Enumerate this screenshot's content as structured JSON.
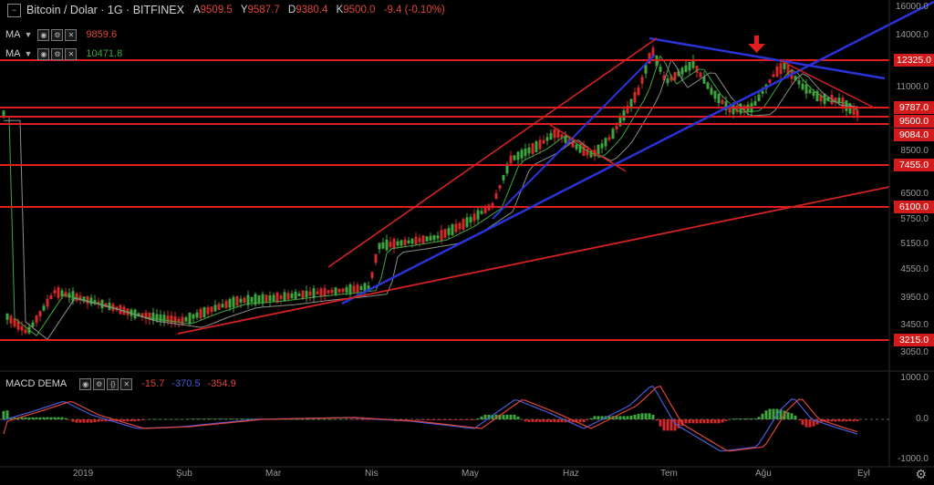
{
  "header": {
    "title": "Bitcoin / Dolar · 1G · BITFINEX",
    "ohlc": [
      {
        "k": "A",
        "v": "9509.5"
      },
      {
        "k": "Y",
        "v": "9587.7"
      },
      {
        "k": "D",
        "v": "9380.4"
      },
      {
        "k": "K",
        "v": "9500.0"
      }
    ],
    "change": "-9.4 (-0.10%)"
  },
  "indicators": [
    {
      "label": "MA",
      "value": "9859.6"
    },
    {
      "label": "MA",
      "value": "10471.8"
    }
  ],
  "macd": {
    "label": "MACD DEMA",
    "v1": "-15.7",
    "v2": "-370.5",
    "v3": "-354.9"
  },
  "price_axis": {
    "ticks": [
      "16000.0",
      "14000.0",
      "11000.0",
      "8500.0",
      "6500.0",
      "5750.0",
      "5150.0",
      "4550.0",
      "3950.0",
      "3450.0",
      "3050.0"
    ],
    "badges": [
      "12325.0",
      "9787.0",
      "9500.0",
      "9084.0",
      "7455.0",
      "6100.0",
      "3215.0"
    ]
  },
  "macd_axis": {
    "ticks": [
      "1000.0",
      "0.0",
      "-1000.0"
    ]
  },
  "time_axis": {
    "labels": [
      "2019",
      "Şub",
      "Mar",
      "Nis",
      "May",
      "Haz",
      "Tem",
      "Ağu",
      "Eyl"
    ]
  },
  "colors": {
    "up": "#3fa63f",
    "down": "#d42a2a",
    "level": "#e01e1e",
    "trend_blue": "#2a33d8",
    "trend_red": "#d42222"
  },
  "icons": {
    "settings": "gear-icon",
    "collapse": "square-icon",
    "annotation": "down-arrow-icon"
  }
}
